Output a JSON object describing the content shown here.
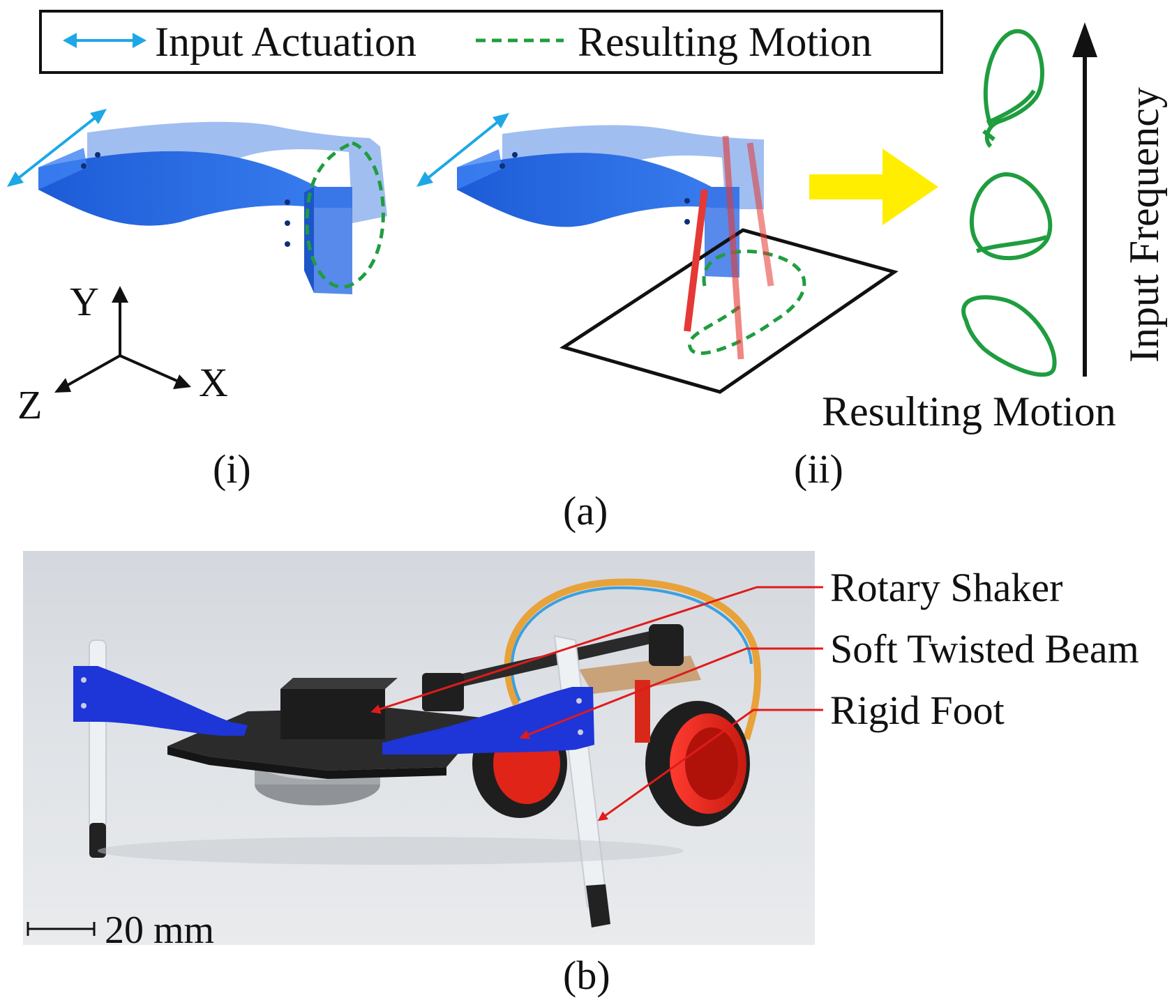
{
  "legend": {
    "input_label": "Input Actuation",
    "motion_label": "Resulting Motion",
    "input_color": "#1ea7e6",
    "motion_color": "#1f9d3f"
  },
  "axes": {
    "y": "Y",
    "x": "X",
    "z": "Z"
  },
  "panel_a": {
    "sub_i": "(i)",
    "sub_ii": "(ii)",
    "caption": "(a)",
    "trajectory_caption": "Resulting Motion",
    "frequency_label": "Input Frequency",
    "beam_color": "#2f6fe0",
    "leg_color": "#e53935",
    "arrow_color": "#ffee00"
  },
  "panel_b": {
    "caption": "(b)",
    "callouts": [
      {
        "label": "Rotary Shaker"
      },
      {
        "label": "Soft Twisted Beam"
      },
      {
        "label": "Rigid Foot"
      }
    ],
    "scale_bar": "20 mm",
    "callout_color": "#e01b1b"
  }
}
